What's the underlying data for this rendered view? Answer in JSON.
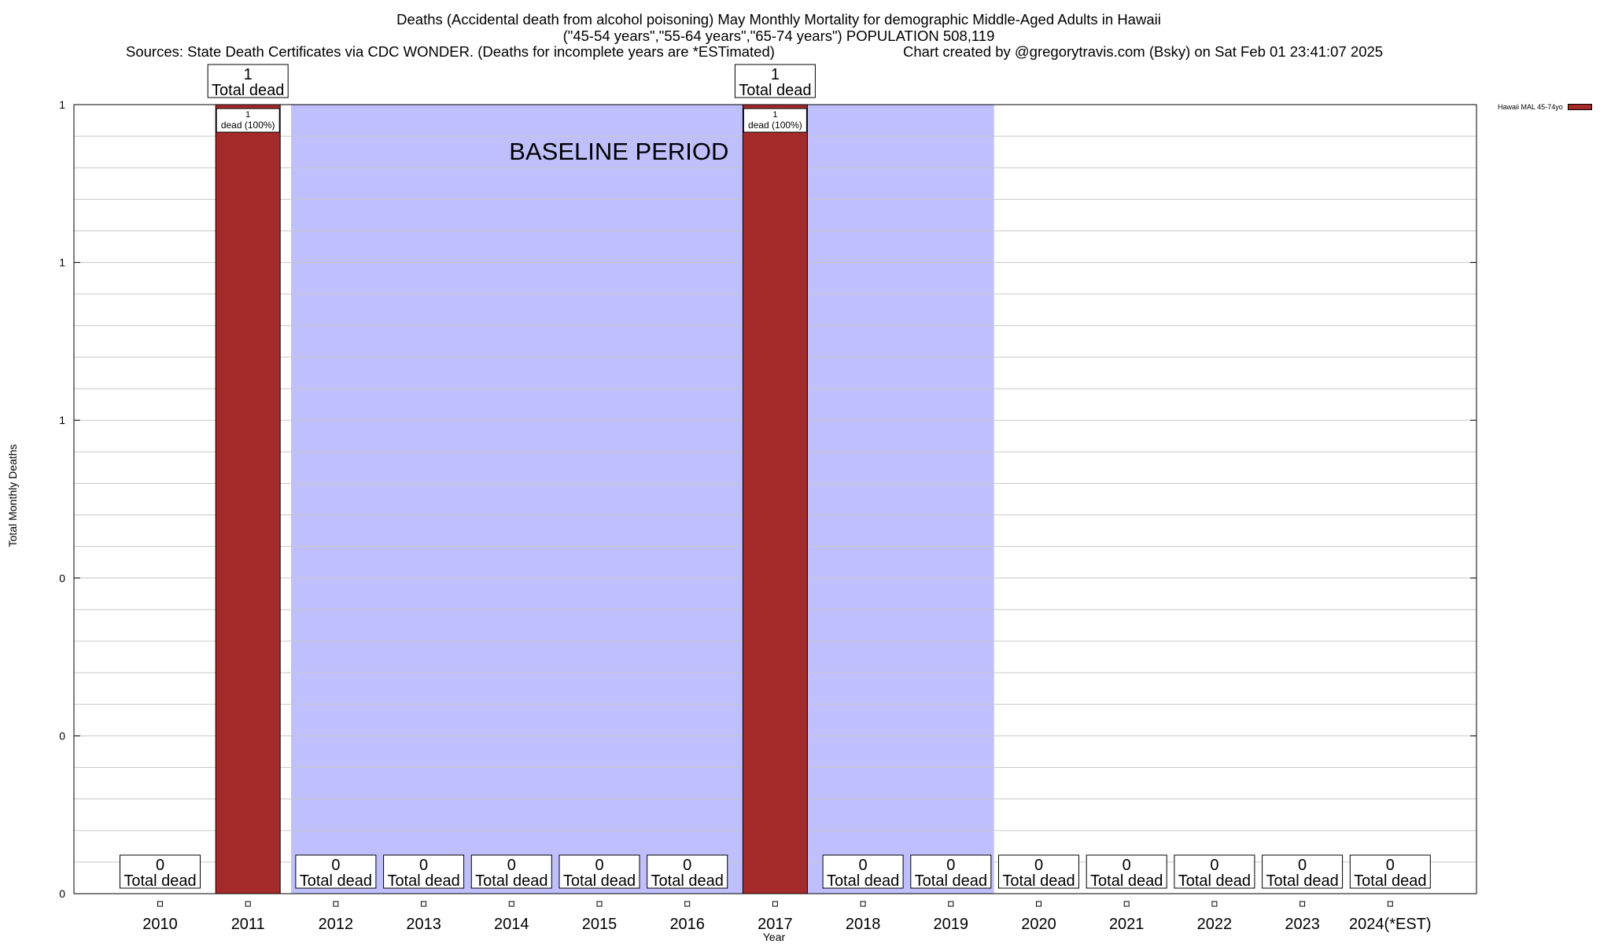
{
  "header": {
    "title_line1": "Deaths (Accidental death from alcohol poisoning) May Monthly Mortality for demographic Middle-Aged Adults in Hawaii",
    "title_line2": "(\"45-54 years\",\"55-64 years\",\"65-74 years\") POPULATION 508,119",
    "sources": "Sources: State Death Certificates via CDC WONDER. (Deaths for incomplete years are *ESTimated)",
    "credit": "Chart created by @gregorytravis.com (Bsky) on Sat Feb 01 23:41:07 2025"
  },
  "legend": {
    "label": "Hawaii MAL 45-74yo"
  },
  "chart_data": {
    "type": "bar",
    "categories": [
      "2010",
      "2011",
      "2012",
      "2013",
      "2014",
      "2015",
      "2016",
      "2017",
      "2018",
      "2019",
      "2020",
      "2021",
      "2022",
      "2023",
      "2024(*EST)"
    ],
    "series": [
      {
        "name": "Hawaii MAL 45-74yo",
        "values": [
          0,
          1,
          0,
          0,
          0,
          0,
          0,
          1,
          0,
          0,
          0,
          0,
          0,
          0,
          0
        ]
      }
    ],
    "total_labels": [
      "0",
      "1",
      "0",
      "0",
      "0",
      "0",
      "0",
      "1",
      "0",
      "0",
      "0",
      "0",
      "0",
      "0",
      "0"
    ],
    "total_caption": "Total dead",
    "inner_labels": {
      "1": "1",
      "7": "1"
    },
    "inner_caption": "dead (100%)",
    "xlabel": "Year",
    "ylabel": "Total Monthly Deaths",
    "ylim": [
      0,
      1
    ],
    "y_tick_values": [
      0,
      0.2,
      0.4,
      0.6,
      0.8,
      1
    ],
    "y_tick_labels": [
      "0",
      "0",
      "0",
      "1",
      "1",
      "1"
    ],
    "baseline_label": "BASELINE PERIOD",
    "baseline_range": [
      "2012",
      "2019"
    ],
    "grid": true,
    "legend_position": "top-right",
    "colors": {
      "bar": "#a52a2a",
      "baseline": "#bfbffd",
      "grid": "#c8c8c8"
    }
  }
}
